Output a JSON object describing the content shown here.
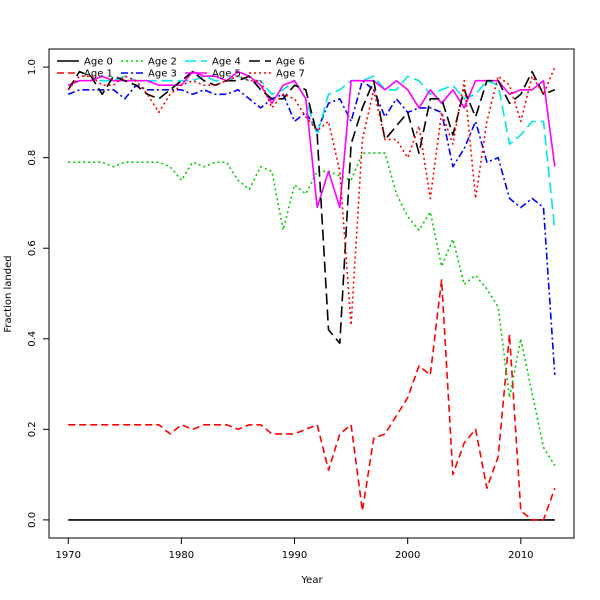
{
  "chart_data": {
    "type": "line",
    "title": "",
    "xlabel": "Year",
    "ylabel": "Fraction landed",
    "xlim": [
      1968.3,
      2014.7
    ],
    "ylim": [
      -0.04,
      1.04
    ],
    "x_ticks": [
      1970,
      1980,
      1990,
      2000,
      2010
    ],
    "y_ticks": [
      0.0,
      0.2,
      0.4,
      0.6,
      0.8,
      1.0
    ],
    "x_tick_labels": [
      "1970",
      "1980",
      "1990",
      "2000",
      "2010"
    ],
    "y_tick_labels": [
      "0.0",
      "0.2",
      "0.4",
      "0.6",
      "0.8",
      "1.0"
    ],
    "grid": false,
    "legend_position": "top-left",
    "x": [
      1970,
      1971,
      1972,
      1973,
      1974,
      1975,
      1976,
      1977,
      1978,
      1979,
      1980,
      1981,
      1982,
      1983,
      1984,
      1985,
      1986,
      1987,
      1988,
      1989,
      1990,
      1991,
      1992,
      1993,
      1994,
      1995,
      1996,
      1997,
      1998,
      1999,
      2000,
      2001,
      2002,
      2003,
      2004,
      2005,
      2006,
      2007,
      2008,
      2009,
      2010,
      2011,
      2012,
      2013
    ],
    "series": [
      {
        "name": "Age 0",
        "color": "#000000",
        "dash": "solid",
        "values": [
          0,
          0,
          0,
          0,
          0,
          0,
          0,
          0,
          0,
          0,
          0,
          0,
          0,
          0,
          0,
          0,
          0,
          0,
          0,
          0,
          0,
          0,
          0,
          0,
          0,
          0,
          0,
          0,
          0,
          0,
          0,
          0,
          0,
          0,
          0,
          0,
          0,
          0,
          0,
          0,
          0,
          0,
          0,
          0
        ]
      },
      {
        "name": "Age 1",
        "color": "#ff0000",
        "dash": "dashed",
        "values": [
          0.21,
          0.21,
          0.21,
          0.21,
          0.21,
          0.21,
          0.21,
          0.21,
          0.21,
          0.19,
          0.21,
          0.2,
          0.21,
          0.21,
          0.21,
          0.2,
          0.21,
          0.21,
          0.19,
          0.19,
          0.19,
          0.2,
          0.21,
          0.11,
          0.19,
          0.21,
          0.02,
          0.18,
          0.19,
          0.23,
          0.27,
          0.34,
          0.32,
          0.53,
          0.1,
          0.17,
          0.2,
          0.07,
          0.14,
          0.41,
          0.02,
          0.0,
          0.0,
          0.07
        ]
      },
      {
        "name": "Age 2",
        "color": "#00cc00",
        "dash": "dotted",
        "values": [
          0.79,
          0.79,
          0.79,
          0.79,
          0.78,
          0.79,
          0.79,
          0.79,
          0.79,
          0.78,
          0.75,
          0.79,
          0.78,
          0.79,
          0.79,
          0.75,
          0.73,
          0.78,
          0.77,
          0.64,
          0.74,
          0.72,
          0.77,
          0.77,
          0.76,
          0.75,
          0.81,
          0.81,
          0.81,
          0.72,
          0.67,
          0.64,
          0.68,
          0.56,
          0.62,
          0.52,
          0.54,
          0.51,
          0.47,
          0.27,
          0.4,
          0.28,
          0.16,
          0.12
        ]
      },
      {
        "name": "Age 3",
        "color": "#0000ff",
        "dash": "dashdot",
        "values": [
          0.94,
          0.95,
          0.95,
          0.95,
          0.95,
          0.93,
          0.96,
          0.95,
          0.95,
          0.95,
          0.95,
          0.94,
          0.95,
          0.94,
          0.94,
          0.95,
          0.93,
          0.91,
          0.93,
          0.94,
          0.88,
          0.9,
          0.86,
          0.92,
          0.93,
          0.88,
          0.97,
          0.95,
          0.89,
          0.93,
          0.9,
          0.91,
          0.91,
          0.9,
          0.78,
          0.82,
          0.88,
          0.79,
          0.8,
          0.71,
          0.69,
          0.71,
          0.69,
          0.32
        ]
      },
      {
        "name": "Age 4",
        "color": "#00e5e5",
        "dash": "longdash",
        "values": [
          0.96,
          0.97,
          0.97,
          0.97,
          0.97,
          0.98,
          0.97,
          0.97,
          0.97,
          0.97,
          0.97,
          0.97,
          0.98,
          0.97,
          0.97,
          0.98,
          0.97,
          0.97,
          0.94,
          0.95,
          0.97,
          0.93,
          0.85,
          0.94,
          0.95,
          0.97,
          0.97,
          0.98,
          0.95,
          0.95,
          0.98,
          0.97,
          0.94,
          0.95,
          0.96,
          0.93,
          0.94,
          0.97,
          0.96,
          0.83,
          0.85,
          0.88,
          0.88,
          0.64
        ]
      },
      {
        "name": "Age 5",
        "color": "#ff00ff",
        "dash": "solid",
        "values": [
          0.96,
          0.97,
          0.97,
          0.98,
          0.97,
          0.97,
          0.97,
          0.97,
          0.96,
          0.96,
          0.96,
          0.99,
          0.98,
          0.98,
          0.97,
          0.99,
          0.98,
          0.96,
          0.92,
          0.96,
          0.97,
          0.93,
          0.69,
          0.77,
          0.69,
          0.97,
          0.97,
          0.97,
          0.95,
          0.97,
          0.95,
          0.91,
          0.95,
          0.92,
          0.95,
          0.91,
          0.97,
          0.97,
          0.97,
          0.94,
          0.95,
          0.95,
          0.97,
          0.78
        ]
      },
      {
        "name": "Age 6",
        "color": "#000000",
        "dash": "longdash",
        "values": [
          0.95,
          0.99,
          0.98,
          0.94,
          0.98,
          0.97,
          0.96,
          0.94,
          0.93,
          0.95,
          0.97,
          0.99,
          0.97,
          0.96,
          0.97,
          0.97,
          0.98,
          0.95,
          0.93,
          0.93,
          0.96,
          0.95,
          0.85,
          0.42,
          0.39,
          0.83,
          0.91,
          0.97,
          0.84,
          0.87,
          0.9,
          0.81,
          0.93,
          0.93,
          0.85,
          0.95,
          0.89,
          0.97,
          0.97,
          0.92,
          0.94,
          0.99,
          0.94,
          0.95
        ]
      },
      {
        "name": "Age 7",
        "color": "#ff0000",
        "dash": "dotted",
        "values": [
          0.95,
          0.98,
          0.98,
          0.96,
          0.96,
          0.98,
          0.97,
          0.94,
          0.9,
          0.94,
          0.96,
          0.97,
          0.96,
          0.96,
          0.97,
          0.98,
          0.97,
          0.97,
          0.91,
          0.94,
          0.93,
          0.89,
          0.86,
          0.88,
          0.77,
          0.43,
          0.84,
          0.95,
          0.84,
          0.84,
          0.8,
          0.87,
          0.71,
          0.9,
          0.83,
          0.97,
          0.71,
          0.88,
          0.98,
          0.96,
          0.88,
          0.98,
          0.94,
          1.0
        ]
      }
    ]
  }
}
